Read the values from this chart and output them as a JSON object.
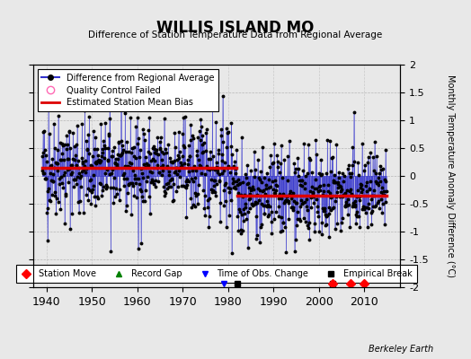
{
  "title": "WILLIS ISLAND MO",
  "subtitle": "Difference of Station Temperature Data from Regional Average",
  "ylabel": "Monthly Temperature Anomaly Difference (°C)",
  "xlim": [
    1937,
    2018
  ],
  "ylim": [
    -2.0,
    2.0
  ],
  "yticks": [
    -2,
    -1.5,
    -1,
    -0.5,
    0,
    0.5,
    1,
    1.5,
    2
  ],
  "xticks": [
    1940,
    1950,
    1960,
    1970,
    1980,
    1990,
    2000,
    2010
  ],
  "background_color": "#e8e8e8",
  "plot_bg_color": "#e8e8e8",
  "line_color": "#3333cc",
  "dot_color": "#000000",
  "bias_color": "#dd0000",
  "bias_level_1": 0.15,
  "bias_level_2": -0.35,
  "bias_break_year": 1982,
  "station_move_years": [
    2003,
    2007,
    2010
  ],
  "obs_change_years": [
    1979
  ],
  "empirical_break_years": [
    1982,
    2003
  ],
  "seed": 42,
  "years_start": 1939,
  "years_end": 2014
}
